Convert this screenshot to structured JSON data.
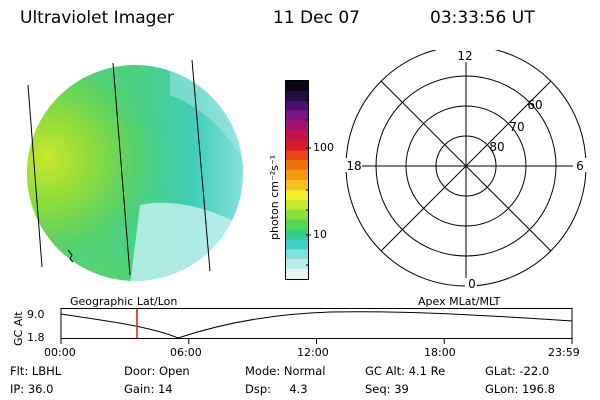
{
  "header": {
    "title": "Ultraviolet Imager",
    "date": "11 Dec 07",
    "time": "03:33:56 UT"
  },
  "colorbar": {
    "label": "photon cm⁻²s⁻¹",
    "ticks": [
      "100",
      "10"
    ],
    "colors": [
      "#e6f4f3",
      "#b9ecea",
      "#7fe0dc",
      "#3ed0c4",
      "#33cc88",
      "#55d650",
      "#8be03a",
      "#c8e82e",
      "#f2ee2a",
      "#f8c21c",
      "#f49a10",
      "#f0700c",
      "#e8441a",
      "#d61c2a",
      "#c4124a",
      "#a4126e",
      "#7c128a",
      "#4a1070",
      "#241040",
      "#0d0618"
    ]
  },
  "polar": {
    "mlt_labels": [
      "12",
      "6",
      "18",
      "0"
    ],
    "lat_labels": [
      "60",
      "70",
      "80"
    ]
  },
  "timeline": {
    "left_label": "Geographic Lat/Lon",
    "right_label": "Apex MLat/MLT",
    "y_title": "GC Alt",
    "y_ticks": [
      "9.0",
      "1.8"
    ],
    "x_ticks": [
      "00:00",
      "06:00",
      "12:00",
      "18:00",
      "23:59"
    ],
    "marker_time": "03:33:56",
    "marker_color": "#cc2222"
  },
  "info": {
    "row1": [
      {
        "label": "Flt:",
        "value": "LBHL"
      },
      {
        "label": "Door:",
        "value": "Open"
      },
      {
        "label": "Mode:",
        "value": "Normal"
      },
      {
        "label": "GC Alt:",
        "value": "4.1 Re"
      },
      {
        "label": "GLat:",
        "value": "-22.0"
      }
    ],
    "row2": [
      {
        "label": "IP:",
        "value": "36.0"
      },
      {
        "label": "Gain:",
        "value": "14"
      },
      {
        "label": "Dsp:",
        "value": "4.3"
      },
      {
        "label": "Seq:",
        "value": "39"
      },
      {
        "label": "GLon:",
        "value": "196.8"
      }
    ]
  }
}
